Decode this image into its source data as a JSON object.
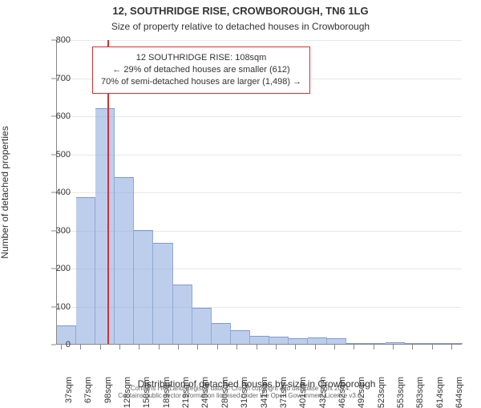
{
  "header": {
    "line1": "12, SOUTHRIDGE RISE, CROWBOROUGH, TN6 1LG",
    "line2": "Size of property relative to detached houses in Crowborough"
  },
  "fontsizes": {
    "title1": 13,
    "title2": 12,
    "axis_label": 12,
    "tick": 11,
    "annotation": 11,
    "footer": 8
  },
  "chart": {
    "type": "histogram",
    "ylabel": "Number of detached properties",
    "xlabel": "Distribution of detached houses by size in Crowborough",
    "ylim": [
      0,
      800
    ],
    "yticks": [
      0,
      100,
      200,
      300,
      400,
      500,
      600,
      700,
      800
    ],
    "xlim_sqm": [
      30,
      660
    ],
    "xticks_sqm": [
      37,
      67,
      98,
      128,
      158,
      189,
      219,
      249,
      280,
      310,
      341,
      371,
      401,
      432,
      462,
      492,
      523,
      553,
      583,
      614,
      644
    ],
    "x_suffix": "sqm",
    "bar_color_fill": "#87a5dc",
    "bar_alpha": 0.55,
    "grid_color": "#e8e8e8",
    "axis_color": "#888888",
    "background": "#ffffff",
    "bins": [
      {
        "start": 30,
        "end": 60,
        "count": 48
      },
      {
        "start": 60,
        "end": 90,
        "count": 385
      },
      {
        "start": 90,
        "end": 120,
        "count": 620
      },
      {
        "start": 120,
        "end": 150,
        "count": 438
      },
      {
        "start": 150,
        "end": 180,
        "count": 300
      },
      {
        "start": 180,
        "end": 210,
        "count": 265
      },
      {
        "start": 210,
        "end": 240,
        "count": 155
      },
      {
        "start": 240,
        "end": 270,
        "count": 95
      },
      {
        "start": 270,
        "end": 300,
        "count": 55
      },
      {
        "start": 300,
        "end": 330,
        "count": 35
      },
      {
        "start": 330,
        "end": 360,
        "count": 22
      },
      {
        "start": 360,
        "end": 390,
        "count": 18
      },
      {
        "start": 390,
        "end": 420,
        "count": 15
      },
      {
        "start": 420,
        "end": 450,
        "count": 16
      },
      {
        "start": 450,
        "end": 480,
        "count": 14
      },
      {
        "start": 480,
        "end": 510,
        "count": 2
      },
      {
        "start": 510,
        "end": 540,
        "count": 3
      },
      {
        "start": 540,
        "end": 570,
        "count": 4
      },
      {
        "start": 570,
        "end": 600,
        "count": 1
      },
      {
        "start": 600,
        "end": 630,
        "count": 2
      },
      {
        "start": 630,
        "end": 660,
        "count": 1
      }
    ],
    "marker_sqm": 108,
    "marker_color": "#d43030"
  },
  "annotation": {
    "border_color": "#d43030",
    "lines": [
      "12 SOUTHRIDGE RISE: 108sqm",
      "← 29% of detached houses are smaller (612)",
      "70% of semi-detached houses are larger (1,498) →"
    ]
  },
  "footer": {
    "line1": "Contains HM Land Registry data © Crown copyright and database right 2024.",
    "line2": "Contains public sector information licensed under the Open Government Licence v3.0."
  }
}
